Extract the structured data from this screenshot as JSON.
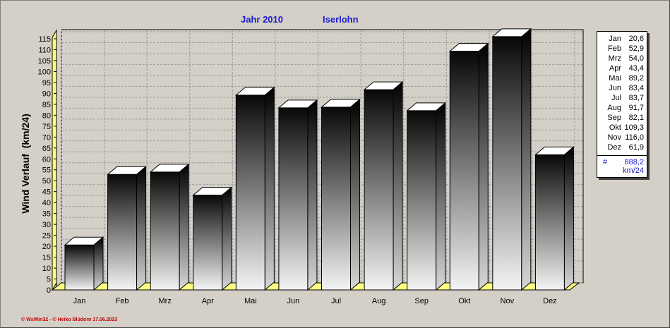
{
  "chart_data": {
    "type": "bar",
    "title": "Jahr  2010",
    "subtitle": "Iserlohn",
    "ylabel": "Wind Verlauf  (km/24)",
    "xlabel": "",
    "categories": [
      "Jan",
      "Feb",
      "Mrz",
      "Apr",
      "Mai",
      "Jun",
      "Jul",
      "Aug",
      "Sep",
      "Okt",
      "Nov",
      "Dez"
    ],
    "values": [
      20.6,
      52.9,
      54.0,
      43.4,
      89.2,
      83.4,
      83.7,
      91.7,
      82.1,
      109.3,
      116.0,
      61.9
    ],
    "value_labels": [
      "20,6",
      "52,9",
      "54,0",
      "43,4",
      "89,2",
      "83,4",
      "83,7",
      "91,7",
      "82,1",
      "109,3",
      "116,0",
      "61,9"
    ],
    "ylim": [
      0,
      115
    ],
    "yticks": [
      0,
      5,
      10,
      15,
      20,
      25,
      30,
      35,
      40,
      45,
      50,
      55,
      60,
      65,
      70,
      75,
      80,
      85,
      90,
      95,
      100,
      105,
      110,
      115
    ],
    "grid": true,
    "legend_position": "right",
    "total": {
      "symbol": "#",
      "value": "888,2",
      "unit": "km/24"
    }
  },
  "footer": "© WsWin32  -  © Heiko Blüdorn  17.06.2023",
  "colors": {
    "title": "#1a1ad0",
    "background": "#d4d0c8",
    "floor": "#ffff80",
    "footer": "#c00000"
  }
}
